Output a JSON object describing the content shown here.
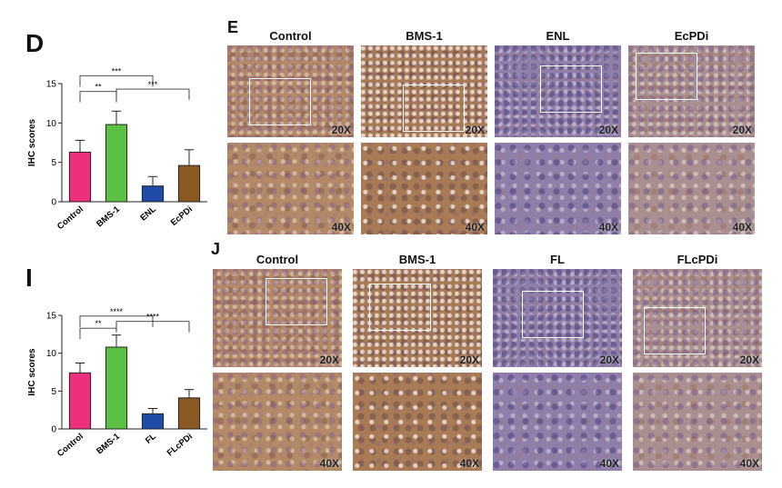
{
  "colors": {
    "bars": [
      "#ee2f7e",
      "#5cc043",
      "#1f4aa8",
      "#8b5a22"
    ],
    "tissue_brown": "#b48a66",
    "tissue_purple": "#8f7ea8"
  },
  "chart_data": [
    {
      "type": "bar",
      "panel": "D",
      "title": "",
      "xlabel": "",
      "ylabel": "IHC scores",
      "ylim": [
        0,
        15
      ],
      "yticks": [
        0,
        5,
        10,
        15
      ],
      "categories": [
        "Control",
        "BMS-1",
        "ENL",
        "EcPDi"
      ],
      "values": [
        6.3,
        9.8,
        2.0,
        4.6
      ],
      "errors": [
        1.5,
        1.7,
        1.2,
        2.0
      ],
      "significance": [
        {
          "from": 0,
          "to": 1,
          "label": "**"
        },
        {
          "from": 0,
          "to": 2,
          "label": "***"
        },
        {
          "from": 1,
          "to": 3,
          "label": "***"
        }
      ],
      "grid": false,
      "legend": "none"
    },
    {
      "type": "bar",
      "panel": "I",
      "title": "",
      "xlabel": "",
      "ylabel": "IHC scores",
      "ylim": [
        0,
        15
      ],
      "yticks": [
        0,
        5,
        10,
        15
      ],
      "categories": [
        "Control",
        "BMS-1",
        "FL",
        "FLcPDi"
      ],
      "values": [
        7.4,
        10.8,
        2.0,
        4.1
      ],
      "errors": [
        1.3,
        1.6,
        0.7,
        1.1
      ],
      "significance": [
        {
          "from": 0,
          "to": 1,
          "label": "**"
        },
        {
          "from": 0,
          "to": 2,
          "label": "****"
        },
        {
          "from": 1,
          "to": 3,
          "label": "****"
        }
      ],
      "grid": false,
      "legend": "none"
    }
  ],
  "ihc_panels": [
    {
      "panel": "E",
      "columns": [
        "Control",
        "BMS-1",
        "ENL",
        "EcPDi"
      ],
      "magnifications": [
        "20X",
        "40X"
      ],
      "textures": [
        "brown",
        "brown2",
        "purple",
        "mixed"
      ]
    },
    {
      "panel": "J",
      "columns": [
        "Control",
        "BMS-1",
        "FL",
        "FLcPDi"
      ],
      "magnifications": [
        "20X",
        "40X"
      ],
      "textures": [
        "brown",
        "brown2",
        "purple",
        "mixed"
      ]
    }
  ]
}
